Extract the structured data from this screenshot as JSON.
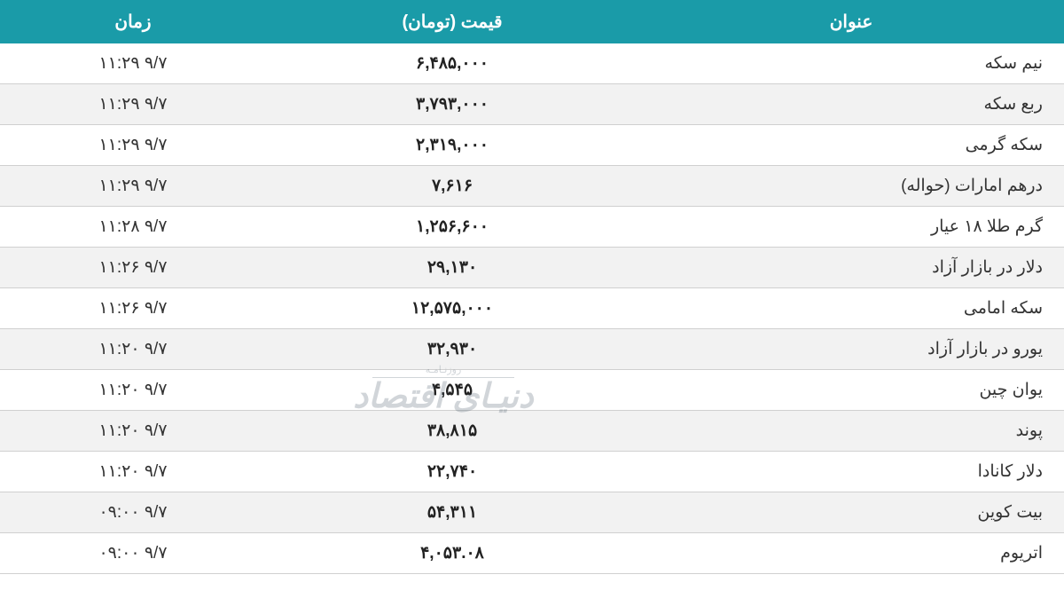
{
  "header": {
    "title": "عنوان",
    "price": "قیمت (تومان)",
    "time": "زمان"
  },
  "colors": {
    "header_bg": "#1a9ba8",
    "header_fg": "#ffffff",
    "row_even": "#ffffff",
    "row_odd": "#f2f2f2",
    "border": "#d0d0d0",
    "text": "#333333",
    "price_text": "#222222"
  },
  "typography": {
    "header_fontsize": 20,
    "cell_fontsize": 19,
    "price_weight": 700
  },
  "watermark": {
    "sub": "روزنـامـه",
    "main": "دنیـای اقتصاد"
  },
  "rows": [
    {
      "title": "نیم سکه",
      "price": "۶,۴۸۵,۰۰۰",
      "time": "۱۱:۲۹ ۹/۷"
    },
    {
      "title": "ربع سکه",
      "price": "۳,۷۹۳,۰۰۰",
      "time": "۱۱:۲۹ ۹/۷"
    },
    {
      "title": "سکه گرمی",
      "price": "۲,۳۱۹,۰۰۰",
      "time": "۱۱:۲۹ ۹/۷"
    },
    {
      "title": "درهم امارات (حواله)",
      "price": "۷,۶۱۶",
      "time": "۱۱:۲۹ ۹/۷"
    },
    {
      "title": "گرم طلا ۱۸ عیار",
      "price": "۱,۲۵۶,۶۰۰",
      "time": "۱۱:۲۸ ۹/۷"
    },
    {
      "title": "دلار در بازار آزاد",
      "price": "۲۹,۱۳۰",
      "time": "۱۱:۲۶ ۹/۷"
    },
    {
      "title": "سکه امامی",
      "price": "۱۲,۵۷۵,۰۰۰",
      "time": "۱۱:۲۶ ۹/۷"
    },
    {
      "title": "یورو در بازار آزاد",
      "price": "۳۲,۹۳۰",
      "time": "۱۱:۲۰ ۹/۷"
    },
    {
      "title": "یوان چین",
      "price": "۴,۵۴۵",
      "time": "۱۱:۲۰ ۹/۷"
    },
    {
      "title": "پوند",
      "price": "۳۸,۸۱۵",
      "time": "۱۱:۲۰ ۹/۷"
    },
    {
      "title": "دلار کانادا",
      "price": "۲۲,۷۴۰",
      "time": "۱۱:۲۰ ۹/۷"
    },
    {
      "title": "بیت کوین",
      "price": "۵۴,۳۱۱",
      "time": "۰۹:۰۰ ۹/۷"
    },
    {
      "title": "اتریوم",
      "price": "۴,۰۵۳.۰۸",
      "time": "۰۹:۰۰ ۹/۷"
    }
  ]
}
